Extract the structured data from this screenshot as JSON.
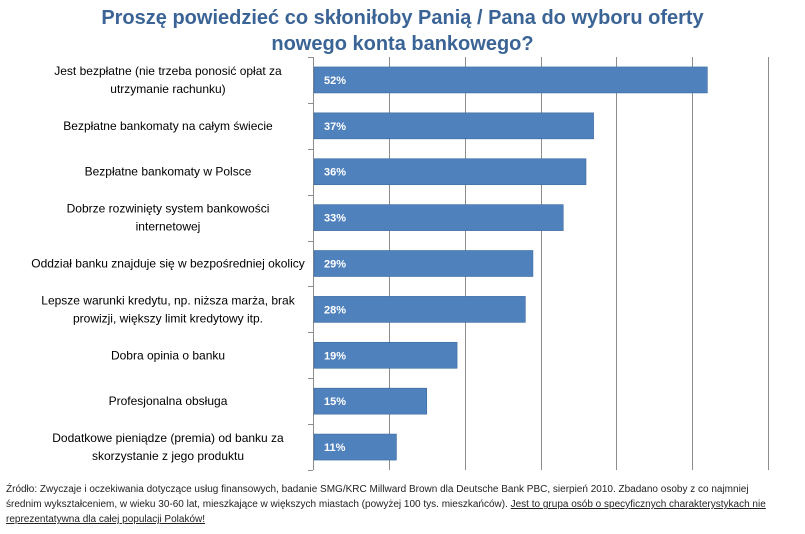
{
  "chart_data": {
    "type": "bar",
    "orientation": "horizontal",
    "title_lines": [
      "Proszę powiedzieć co skłoniłoby Panią / Pana do wyboru oferty",
      "nowego konta bankowego?"
    ],
    "categories": [
      [
        "Jest bezpłatne (nie trzeba ponosić opłat za",
        "utrzymanie rachunku)"
      ],
      [
        "Bezpłatne bankomaty  na całym świecie"
      ],
      [
        "Bezpłatne bankomaty  w Polsce"
      ],
      [
        "Dobrze rozwinięty system bankowości",
        "internetowej"
      ],
      [
        "Oddział banku znajduje się w bezpośredniej okolicy"
      ],
      [
        "Lepsze warunki kredytu, np. niższa marża,  brak",
        "prowizji, większy limit kredytowy itp."
      ],
      [
        "Dobra opinia  o banku"
      ],
      [
        "Profesjonalna obsługa"
      ],
      [
        "Dodatkowe pieniądze (premia) od banku za",
        "skorzystanie z jego produktu"
      ]
    ],
    "values": [
      52,
      37,
      36,
      33,
      29,
      28,
      19,
      15,
      11
    ],
    "value_labels": [
      "52%",
      "37%",
      "36%",
      "33%",
      "29%",
      "28%",
      "19%",
      "15%",
      "11%"
    ],
    "xlim": [
      0,
      60
    ],
    "gridline_step": 10,
    "grid": true,
    "bar_color": "#4f81bd",
    "title_color": "#3b6496"
  },
  "source": {
    "text": "Źródło: Zwyczaje i oczekiwania dotyczące usług finansowych, badanie SMG/KRC Millward Brown dla Deutsche Bank PBC, sierpień 2010. Zbadano osoby z co najmniej średnim wykształceniem, w wieku 30-60 lat, mieszkające w większych miastach (powyżej 100 tys. mieszkańców).",
    "underlined": "Jest to grupa osób o specyficznych charakterystykach nie reprezentatywna dla całej populacji Polaków!"
  }
}
